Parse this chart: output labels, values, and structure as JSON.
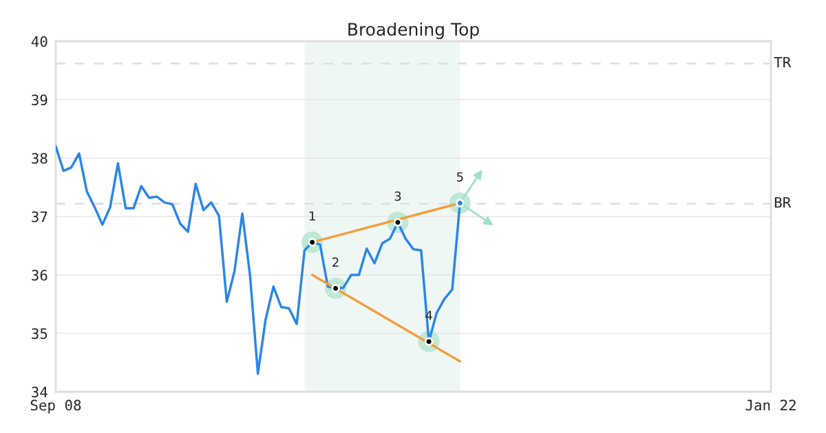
{
  "chart_data": {
    "type": "line",
    "title": "Broadening Top",
    "categories": [
      "Sep 08",
      null,
      null,
      null,
      null,
      null,
      null,
      null,
      null,
      null,
      null,
      null,
      null,
      null,
      null,
      null,
      null,
      null,
      null,
      null,
      null,
      null,
      null,
      null,
      null,
      null,
      null,
      null,
      null,
      null,
      null,
      null,
      null,
      null,
      null,
      null,
      null,
      null,
      null,
      null,
      null,
      null,
      null,
      null,
      null,
      null,
      null,
      null,
      null,
      null,
      null,
      null,
      null,
      null,
      null,
      null,
      null,
      null,
      null,
      null,
      null,
      null,
      null,
      null,
      null,
      null,
      null,
      null,
      null,
      null,
      null,
      null,
      null,
      null,
      null,
      null,
      null,
      null,
      null,
      null,
      null,
      null,
      null,
      null,
      null,
      null,
      null,
      null,
      null,
      null,
      null,
      null,
      "Jan 22"
    ],
    "ylim": [
      34,
      40
    ],
    "yticks": [
      34,
      35,
      36,
      37,
      38,
      39,
      40
    ],
    "grid": "y",
    "series": [
      {
        "color": "#2a86e8",
        "line_style": "solid",
        "values": [
          38.2,
          37.78,
          37.84,
          38.08,
          37.43,
          37.16,
          36.86,
          37.16,
          37.91,
          37.14,
          37.14,
          37.52,
          37.32,
          37.34,
          37.24,
          37.21,
          36.88,
          36.74,
          37.56,
          37.11,
          37.24,
          37.01,
          35.54,
          36.07,
          37.05,
          35.98,
          34.31,
          35.24,
          35.8,
          35.45,
          35.43,
          35.16,
          36.42,
          36.56,
          36.52,
          35.8,
          35.77,
          35.78,
          36.0,
          36.0,
          36.45,
          36.2,
          36.54,
          36.62,
          36.9,
          36.62,
          36.44,
          36.42,
          34.86,
          35.35,
          35.59,
          35.75,
          37.23,
          null,
          null,
          null,
          null,
          null,
          null,
          null,
          null,
          null,
          null,
          null,
          null,
          null,
          null,
          null,
          null,
          null,
          null,
          null,
          null,
          null,
          null,
          null,
          null,
          null,
          null,
          null,
          null,
          null,
          null,
          null,
          null,
          null,
          null,
          null,
          null,
          null,
          null,
          null,
          null
        ]
      },
      {
        "type": "line",
        "color": "#f59c3c",
        "line_style": "solid",
        "values": [
          null,
          null,
          null,
          null,
          null,
          null,
          null,
          null,
          null,
          null,
          null,
          null,
          null,
          null,
          null,
          null,
          null,
          null,
          null,
          null,
          null,
          null,
          null,
          null,
          null,
          null,
          null,
          null,
          null,
          null,
          null,
          null,
          null,
          36.56,
          null,
          null,
          null,
          null,
          null,
          null,
          null,
          null,
          null,
          null,
          null,
          null,
          null,
          null,
          null,
          null,
          null,
          null,
          37.23,
          null,
          null,
          null,
          null,
          null,
          null,
          null,
          null,
          null,
          null,
          null,
          null,
          null,
          null,
          null,
          null,
          null,
          null,
          null,
          null,
          null,
          null,
          null,
          null,
          null,
          null,
          null,
          null,
          null,
          null,
          null,
          null,
          null,
          null,
          null,
          null,
          null,
          null,
          null,
          null
        ]
      },
      {
        "type": "line",
        "color": "#f59c3c",
        "line_style": "solid",
        "values": [
          null,
          null,
          null,
          null,
          null,
          null,
          null,
          null,
          null,
          null,
          null,
          null,
          null,
          null,
          null,
          null,
          null,
          null,
          null,
          null,
          null,
          null,
          null,
          null,
          null,
          null,
          null,
          null,
          null,
          null,
          null,
          null,
          null,
          36.0,
          null,
          null,
          null,
          null,
          null,
          null,
          null,
          null,
          null,
          null,
          null,
          null,
          null,
          null,
          null,
          null,
          null,
          null,
          34.52,
          null,
          null,
          null,
          null,
          null,
          null,
          null,
          null,
          null,
          null,
          null,
          null,
          null,
          null,
          null,
          null,
          null,
          null,
          null,
          null,
          null,
          null,
          null,
          null,
          null,
          null,
          null,
          null,
          null,
          null,
          null,
          null,
          null,
          null,
          null,
          null,
          null,
          null,
          null,
          null
        ]
      },
      {
        "type": "scatter",
        "marker": "circle",
        "color": "#000000",
        "values": [
          null,
          null,
          null,
          null,
          null,
          null,
          null,
          null,
          null,
          null,
          null,
          null,
          null,
          null,
          null,
          null,
          null,
          null,
          null,
          null,
          null,
          null,
          null,
          null,
          null,
          null,
          null,
          null,
          null,
          null,
          null,
          null,
          null,
          36.56,
          null,
          null,
          35.77,
          null,
          null,
          null,
          null,
          null,
          null,
          null,
          36.9,
          null,
          null,
          null,
          34.86,
          null,
          null,
          null,
          null,
          null,
          null,
          null,
          null,
          null,
          null,
          null,
          null,
          null,
          null,
          null,
          null,
          null,
          null,
          null,
          null,
          null,
          null,
          null,
          null,
          null,
          null,
          null,
          null,
          null,
          null,
          null,
          null,
          null,
          null,
          null,
          null,
          null,
          null,
          null,
          null,
          null,
          null,
          null,
          null
        ]
      },
      {
        "type": "scatter",
        "marker": "circle",
        "color": "#2a86e8",
        "values": [
          null,
          null,
          null,
          null,
          null,
          null,
          null,
          null,
          null,
          null,
          null,
          null,
          null,
          null,
          null,
          null,
          null,
          null,
          null,
          null,
          null,
          null,
          null,
          null,
          null,
          null,
          null,
          null,
          null,
          null,
          null,
          null,
          null,
          null,
          null,
          null,
          null,
          null,
          null,
          null,
          null,
          null,
          null,
          null,
          null,
          null,
          null,
          null,
          null,
          null,
          null,
          null,
          37.23,
          null,
          null,
          null,
          null,
          null,
          null,
          null,
          null,
          null,
          null,
          null,
          null,
          null,
          null,
          null,
          null,
          null,
          null,
          null,
          null,
          null,
          null,
          null,
          null,
          null,
          null,
          null,
          null,
          null,
          null,
          null,
          null,
          null,
          null,
          null,
          null,
          null,
          null,
          null,
          null
        ]
      }
    ],
    "annotations": [
      "1",
      "2",
      "3",
      "4",
      "5"
    ],
    "ref_lines": [
      {
        "axis": "y",
        "value": 39.62,
        "label": "TR",
        "color": "#e0e0e0",
        "line_style": "dashed"
      },
      {
        "axis": "y",
        "value": 37.22,
        "label": "BR",
        "color": "#e0e0e0",
        "line_style": "dashed"
      }
    ]
  }
}
